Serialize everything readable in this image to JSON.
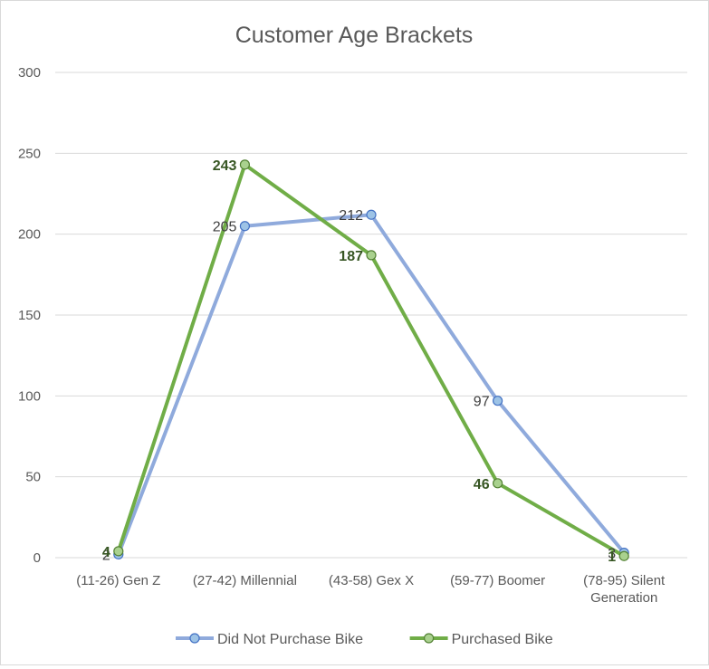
{
  "chart_data": {
    "type": "line",
    "title": "Customer Age Brackets",
    "xlabel": "",
    "ylabel": "",
    "ylim": [
      0,
      300
    ],
    "yticks": [
      0,
      50,
      100,
      150,
      200,
      250,
      300
    ],
    "grid": true,
    "legend_position": "bottom",
    "categories": [
      [
        "(11-26) Gen Z"
      ],
      [
        "(27-42) Millennial"
      ],
      [
        "(43-58) Gex X"
      ],
      [
        "(59-77) Boomer"
      ],
      [
        "(78-95) Silent",
        "Generation"
      ]
    ],
    "series": [
      {
        "name": "Did Not Purchase Bike",
        "values": [
          2,
          205,
          212,
          97,
          3
        ],
        "line_color": "#8faadc",
        "marker_fill": "#9dc3e6",
        "marker_stroke": "#4472c4",
        "label_color": "#404040",
        "label_bold": false
      },
      {
        "name": "Purchased Bike",
        "values": [
          4,
          243,
          187,
          46,
          1
        ],
        "line_color": "#70ad47",
        "marker_fill": "#a9d18e",
        "marker_stroke": "#548235",
        "label_color": "#375623",
        "label_bold": true
      }
    ]
  }
}
